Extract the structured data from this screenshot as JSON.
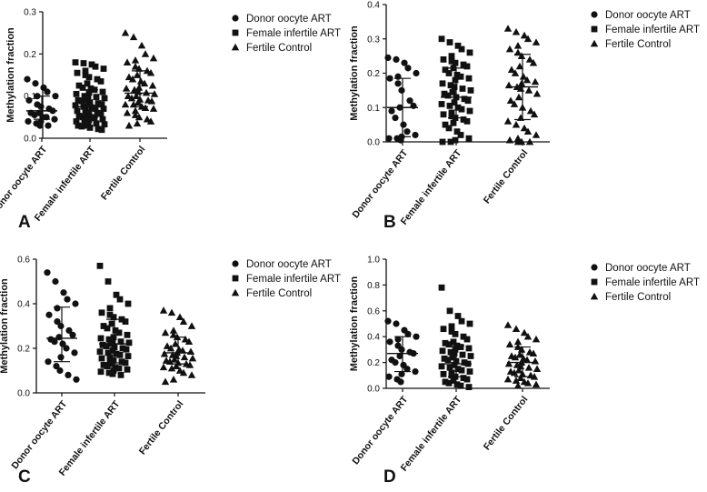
{
  "figure_title": "",
  "chart_data": [
    {
      "type": "scatter",
      "panel": "A",
      "title": "",
      "xlabel": "",
      "ylabel": "Methylation fraction",
      "ylim": [
        0,
        0.3
      ],
      "yticks": [
        "0.0",
        "0.1",
        "0.2",
        "0.3"
      ],
      "grid": false,
      "legend_position": "top-right",
      "categories": [
        "Donor oocyte ART",
        "Female infertile ART",
        "Fertile Control"
      ],
      "series": [
        {
          "name": "Donor oocyte ART",
          "marker": "circle",
          "median": 0.065,
          "q1": 0.045,
          "q3": 0.1,
          "values": [
            0.14,
            0.13,
            0.12,
            0.11,
            0.1,
            0.1,
            0.09,
            0.08,
            0.075,
            0.07,
            0.065,
            0.06,
            0.06,
            0.055,
            0.05,
            0.05,
            0.045,
            0.04,
            0.04,
            0.035,
            0.03,
            0.03
          ]
        },
        {
          "name": "Female infertile ART",
          "marker": "square",
          "median": 0.075,
          "q1": 0.05,
          "q3": 0.115,
          "values": [
            0.18,
            0.178,
            0.175,
            0.17,
            0.165,
            0.16,
            0.155,
            0.15,
            0.145,
            0.14,
            0.135,
            0.13,
            0.125,
            0.12,
            0.118,
            0.115,
            0.11,
            0.108,
            0.105,
            0.1,
            0.1,
            0.098,
            0.095,
            0.092,
            0.09,
            0.088,
            0.085,
            0.083,
            0.08,
            0.08,
            0.078,
            0.075,
            0.073,
            0.07,
            0.07,
            0.068,
            0.065,
            0.063,
            0.06,
            0.06,
            0.058,
            0.055,
            0.053,
            0.05,
            0.05,
            0.048,
            0.045,
            0.043,
            0.04,
            0.04,
            0.038,
            0.035,
            0.033,
            0.03,
            0.03,
            0.028,
            0.025,
            0.022,
            0.02
          ]
        },
        {
          "name": "Fertile Control",
          "marker": "triangle",
          "median": 0.107,
          "q1": 0.075,
          "q3": 0.16,
          "values": [
            0.25,
            0.24,
            0.22,
            0.2,
            0.19,
            0.185,
            0.18,
            0.17,
            0.165,
            0.16,
            0.155,
            0.15,
            0.145,
            0.14,
            0.135,
            0.13,
            0.125,
            0.12,
            0.118,
            0.115,
            0.11,
            0.108,
            0.105,
            0.1,
            0.1,
            0.095,
            0.092,
            0.09,
            0.088,
            0.085,
            0.08,
            0.08,
            0.075,
            0.072,
            0.07,
            0.065,
            0.06,
            0.055,
            0.05,
            0.045,
            0.04,
            0.035,
            0.03
          ]
        }
      ]
    },
    {
      "type": "scatter",
      "panel": "B",
      "title": "",
      "xlabel": "",
      "ylabel": "Methylation fraction",
      "ylim": [
        0,
        0.4
      ],
      "yticks": [
        "0.0",
        "0.1",
        "0.2",
        "0.3",
        "0.4"
      ],
      "grid": false,
      "legend_position": "top-right",
      "categories": [
        "Donor oocyte ART",
        "Female infertile ART",
        "Fertile Control"
      ],
      "series": [
        {
          "name": "Donor oocyte ART",
          "marker": "circle",
          "median": 0.1,
          "q1": 0.015,
          "q3": 0.185,
          "values": [
            0.245,
            0.24,
            0.23,
            0.215,
            0.2,
            0.19,
            0.185,
            0.17,
            0.15,
            0.12,
            0.105,
            0.1,
            0.09,
            0.07,
            0.05,
            0.03,
            0.02,
            0.015,
            0.01,
            0.01,
            0.005
          ]
        },
        {
          "name": "Female infertile ART",
          "marker": "square",
          "median": 0.13,
          "q1": 0.07,
          "q3": 0.215,
          "values": [
            0.3,
            0.29,
            0.28,
            0.27,
            0.26,
            0.25,
            0.24,
            0.235,
            0.23,
            0.225,
            0.22,
            0.215,
            0.21,
            0.2,
            0.195,
            0.19,
            0.185,
            0.18,
            0.17,
            0.165,
            0.16,
            0.155,
            0.15,
            0.145,
            0.14,
            0.135,
            0.13,
            0.125,
            0.12,
            0.115,
            0.11,
            0.105,
            0.1,
            0.095,
            0.09,
            0.085,
            0.08,
            0.075,
            0.07,
            0.065,
            0.06,
            0.055,
            0.05,
            0.04,
            0.03,
            0.02,
            0.01,
            0.005,
            0.0,
            0.0
          ]
        },
        {
          "name": "Fertile Control",
          "marker": "triangle",
          "median": 0.16,
          "q1": 0.065,
          "q3": 0.255,
          "values": [
            0.33,
            0.32,
            0.31,
            0.3,
            0.29,
            0.28,
            0.27,
            0.26,
            0.25,
            0.24,
            0.23,
            0.22,
            0.21,
            0.2,
            0.19,
            0.18,
            0.175,
            0.17,
            0.165,
            0.16,
            0.155,
            0.15,
            0.14,
            0.13,
            0.12,
            0.11,
            0.1,
            0.09,
            0.08,
            0.07,
            0.06,
            0.05,
            0.04,
            0.03,
            0.02,
            0.01,
            0.005,
            0.0,
            0.0,
            0.0
          ]
        }
      ]
    },
    {
      "type": "scatter",
      "panel": "C",
      "title": "",
      "xlabel": "",
      "ylabel": "Methylation fraction",
      "ylim": [
        0,
        0.6
      ],
      "yticks": [
        "0.0",
        "0.2",
        "0.4",
        "0.6"
      ],
      "grid": false,
      "legend_position": "top-right",
      "categories": [
        "Donor oocyte ART",
        "Female infertile ART",
        "Fertile Control"
      ],
      "series": [
        {
          "name": "Donor oocyte ART",
          "marker": "circle",
          "median": 0.245,
          "q1": 0.14,
          "q3": 0.385,
          "values": [
            0.54,
            0.5,
            0.45,
            0.42,
            0.4,
            0.38,
            0.35,
            0.32,
            0.3,
            0.28,
            0.26,
            0.25,
            0.24,
            0.23,
            0.22,
            0.2,
            0.18,
            0.16,
            0.14,
            0.12,
            0.1,
            0.08,
            0.06
          ]
        },
        {
          "name": "Female infertile ART",
          "marker": "square",
          "median": 0.22,
          "q1": 0.135,
          "q3": 0.33,
          "values": [
            0.57,
            0.5,
            0.44,
            0.42,
            0.4,
            0.38,
            0.36,
            0.35,
            0.34,
            0.33,
            0.32,
            0.31,
            0.3,
            0.29,
            0.28,
            0.27,
            0.26,
            0.25,
            0.245,
            0.24,
            0.235,
            0.23,
            0.225,
            0.22,
            0.215,
            0.21,
            0.205,
            0.2,
            0.195,
            0.19,
            0.185,
            0.18,
            0.175,
            0.17,
            0.165,
            0.16,
            0.155,
            0.15,
            0.145,
            0.14,
            0.135,
            0.13,
            0.125,
            0.12,
            0.115,
            0.11,
            0.105,
            0.1,
            0.095,
            0.09,
            0.085,
            0.08
          ]
        },
        {
          "name": "Fertile Control",
          "marker": "triangle",
          "median": 0.18,
          "q1": 0.13,
          "q3": 0.25,
          "values": [
            0.37,
            0.36,
            0.34,
            0.32,
            0.3,
            0.28,
            0.27,
            0.26,
            0.25,
            0.24,
            0.23,
            0.22,
            0.21,
            0.2,
            0.195,
            0.19,
            0.185,
            0.18,
            0.175,
            0.17,
            0.165,
            0.16,
            0.155,
            0.15,
            0.145,
            0.14,
            0.135,
            0.13,
            0.125,
            0.12,
            0.115,
            0.11,
            0.1,
            0.09,
            0.08,
            0.06,
            0.05
          ]
        }
      ]
    },
    {
      "type": "scatter",
      "panel": "D",
      "title": "",
      "xlabel": "",
      "ylabel": "Methylation fraction",
      "ylim": [
        0,
        1.0
      ],
      "yticks": [
        "0.0",
        "0.2",
        "0.4",
        "0.6",
        "0.8",
        "1.0"
      ],
      "grid": false,
      "legend_position": "top-right",
      "categories": [
        "Donor oocyte ART",
        "Female infertile ART",
        "Fertile Control"
      ],
      "series": [
        {
          "name": "Donor oocyte ART",
          "marker": "circle",
          "median": 0.27,
          "q1": 0.13,
          "q3": 0.4,
          "values": [
            0.52,
            0.5,
            0.45,
            0.42,
            0.4,
            0.38,
            0.36,
            0.33,
            0.3,
            0.28,
            0.27,
            0.25,
            0.22,
            0.2,
            0.18,
            0.15,
            0.13,
            0.11,
            0.09,
            0.07,
            0.05
          ]
        },
        {
          "name": "Female infertile ART",
          "marker": "square",
          "median": 0.19,
          "q1": 0.09,
          "q3": 0.33,
          "values": [
            0.78,
            0.6,
            0.56,
            0.52,
            0.5,
            0.48,
            0.46,
            0.44,
            0.42,
            0.4,
            0.38,
            0.36,
            0.35,
            0.34,
            0.33,
            0.32,
            0.31,
            0.3,
            0.29,
            0.28,
            0.27,
            0.26,
            0.25,
            0.24,
            0.23,
            0.22,
            0.21,
            0.2,
            0.19,
            0.18,
            0.17,
            0.16,
            0.15,
            0.14,
            0.13,
            0.12,
            0.11,
            0.1,
            0.09,
            0.08,
            0.07,
            0.06,
            0.05,
            0.04,
            0.03,
            0.02,
            0.01
          ]
        },
        {
          "name": "Fertile Control",
          "marker": "triangle",
          "median": 0.2,
          "q1": 0.09,
          "q3": 0.32,
          "values": [
            0.49,
            0.46,
            0.43,
            0.4,
            0.38,
            0.36,
            0.34,
            0.32,
            0.3,
            0.28,
            0.27,
            0.26,
            0.25,
            0.24,
            0.23,
            0.22,
            0.21,
            0.2,
            0.19,
            0.18,
            0.17,
            0.16,
            0.15,
            0.14,
            0.13,
            0.12,
            0.11,
            0.1,
            0.09,
            0.08,
            0.07,
            0.06,
            0.05,
            0.04,
            0.03,
            0.02
          ]
        }
      ]
    }
  ]
}
